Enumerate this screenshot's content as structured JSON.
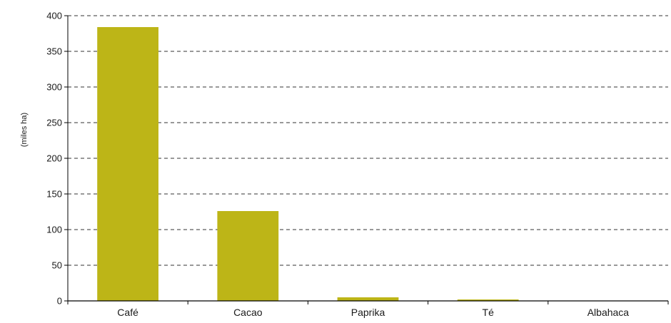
{
  "chart_data": {
    "type": "bar",
    "title": "",
    "xlabel": "",
    "ylabel": "(miles ha)",
    "categories": [
      "Café",
      "Cacao",
      "Paprika",
      "Té",
      "Albahaca"
    ],
    "values": [
      384,
      126,
      5,
      2,
      0
    ],
    "ylim": [
      0,
      400
    ],
    "yticks": [
      0,
      50,
      100,
      150,
      200,
      250,
      300,
      350,
      400
    ],
    "grid": true,
    "grid_style": "dashed",
    "bar_color": "#BDB517",
    "legend": "none"
  }
}
